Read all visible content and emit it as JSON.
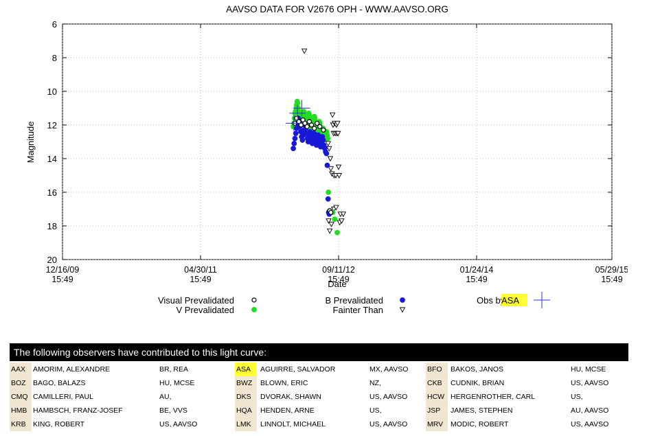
{
  "chart_data": {
    "type": "scatter",
    "title": "AAVSO DATA FOR V2676 OPH - WWW.AAVSO.ORG",
    "xlabel": "Date",
    "ylabel": "Magnitude",
    "ylim": [
      6,
      20
    ],
    "y_inverted": true,
    "y_ticks": [
      "6",
      "8",
      "10",
      "12",
      "14",
      "16",
      "18",
      "20"
    ],
    "x_ticks": [
      {
        "date": "12/16/09",
        "time": "15:49"
      },
      {
        "date": "04/30/11",
        "time": "15:49"
      },
      {
        "date": "09/11/12",
        "time": "15:49"
      },
      {
        "date": "01/24/14",
        "time": "15:49"
      },
      {
        "date": "05/29/15",
        "time": "15:49"
      }
    ],
    "grid": true,
    "legend": [
      {
        "label": "Visual Prevalidated",
        "marker": "black-circle"
      },
      {
        "label": "V Prevalidated",
        "marker": "green-circle"
      },
      {
        "label": "B Prevalidated",
        "marker": "blue-circle"
      },
      {
        "label": "Fainter Than",
        "marker": "open-triangle"
      },
      {
        "label": "Obs by",
        "highlight": "ASA",
        "marker": "blue-cross"
      }
    ],
    "series": [
      {
        "name": "V Prevalidated",
        "color": "#22dd22",
        "x": [
          "03/31/12",
          "04/02/12",
          "04/04/12",
          "04/06/12",
          "04/08/12",
          "04/10/12",
          "04/12/12",
          "04/14/12",
          "04/16/12",
          "04/18/12",
          "04/20/12",
          "04/22/12",
          "04/24/12",
          "04/26/12",
          "04/28/12",
          "04/30/12",
          "05/02/12",
          "05/04/12",
          "05/06/12",
          "05/08/12",
          "05/10/12",
          "05/12/12",
          "05/14/12",
          "05/16/12",
          "05/18/12",
          "05/20/12",
          "05/22/12",
          "05/24/12",
          "05/26/12",
          "05/28/12",
          "05/30/12",
          "06/01/12",
          "06/03/12",
          "06/05/12",
          "06/07/12",
          "06/09/12",
          "06/11/12",
          "06/13/12",
          "06/15/12",
          "06/17/12",
          "06/19/12",
          "06/21/12",
          "06/23/12",
          "06/25/12",
          "06/27/12",
          "06/29/12",
          "07/01/12",
          "07/03/12",
          "07/05/12",
          "07/07/12",
          "07/09/12",
          "07/11/12",
          "07/13/12",
          "07/15/12",
          "07/17/12",
          "07/19/12",
          "07/21/12",
          "07/23/12",
          "07/25/12",
          "07/27/12",
          "07/29/12",
          "08/01/12",
          "08/03/12",
          "08/05/12",
          "08/09/12",
          "08/21/12",
          "08/28/12",
          "09/06/12"
        ],
        "y": [
          12.1,
          11.9,
          11.6,
          11.3,
          11.2,
          11.0,
          10.8,
          10.6,
          10.7,
          11.0,
          11.2,
          11.5,
          11.7,
          11.9,
          12.0,
          11.8,
          11.6,
          11.4,
          11.3,
          11.2,
          11.4,
          11.6,
          11.8,
          12.0,
          12.1,
          11.9,
          11.7,
          11.5,
          11.3,
          11.4,
          11.6,
          11.8,
          12.0,
          12.2,
          12.3,
          12.1,
          11.9,
          11.7,
          11.5,
          11.6,
          11.8,
          12.0,
          12.2,
          12.3,
          12.4,
          12.2,
          12.0,
          11.8,
          11.9,
          12.1,
          12.3,
          12.5,
          12.6,
          12.4,
          12.2,
          12.3,
          12.5,
          12.7,
          12.8,
          12.6,
          12.4,
          12.6,
          12.8,
          16.0,
          17.1,
          17.2,
          17.6,
          18.4
        ]
      },
      {
        "name": "B Prevalidated",
        "color": "#1818d8",
        "x": [
          "03/31/12",
          "04/03/12",
          "04/06/12",
          "04/09/12",
          "04/12/12",
          "04/15/12",
          "04/18/12",
          "04/21/12",
          "04/24/12",
          "04/27/12",
          "04/30/12",
          "05/03/12",
          "05/06/12",
          "05/09/12",
          "05/12/12",
          "05/15/12",
          "05/18/12",
          "05/21/12",
          "05/24/12",
          "05/27/12",
          "05/30/12",
          "06/02/12",
          "06/05/12",
          "06/08/12",
          "06/11/12",
          "06/14/12",
          "06/17/12",
          "06/20/12",
          "06/23/12",
          "06/26/12",
          "06/29/12",
          "07/02/12",
          "07/05/12",
          "07/08/12",
          "07/11/12",
          "07/14/12",
          "07/17/12",
          "07/20/12",
          "07/23/12",
          "07/26/12",
          "07/29/12",
          "08/01/12",
          "08/04/12",
          "08/06/12",
          "08/08/12"
        ],
        "y": [
          13.4,
          13.1,
          12.8,
          12.5,
          12.2,
          11.9,
          11.6,
          11.8,
          12.1,
          12.4,
          12.7,
          12.9,
          12.6,
          12.3,
          12.0,
          12.2,
          12.5,
          12.8,
          13.0,
          12.7,
          12.4,
          12.6,
          12.9,
          13.1,
          12.8,
          12.5,
          12.7,
          13.0,
          13.2,
          12.9,
          12.6,
          12.8,
          13.1,
          13.3,
          13.0,
          12.7,
          12.9,
          13.2,
          13.4,
          13.6,
          13.7,
          14.4,
          16.4,
          17.2,
          17.3
        ]
      },
      {
        "name": "Visual Prevalidated",
        "color": "#000000",
        "x": [
          "04/05/12",
          "04/12/12",
          "04/20/12",
          "04/28/12",
          "05/05/12",
          "05/12/12",
          "05/20/12",
          "05/28/12",
          "06/05/12",
          "06/15/12",
          "06/25/12",
          "07/05/12",
          "07/18/12",
          "08/10/12",
          "08/14/12"
        ],
        "y": [
          11.9,
          11.6,
          11.8,
          12.0,
          11.7,
          11.9,
          12.1,
          11.8,
          12.0,
          12.2,
          11.9,
          12.1,
          12.3,
          17.1,
          17.2
        ]
      },
      {
        "name": "Fainter Than",
        "color": "#000000",
        "x": [
          "05/10/12",
          "07/20/12",
          "07/28/12",
          "08/04/12",
          "08/08/12",
          "08/12/12",
          "08/14/12",
          "08/18/12",
          "08/20/12",
          "08/22/12",
          "08/24/12",
          "08/26/12",
          "08/28/12",
          "08/30/12",
          "09/01/12",
          "09/03/12",
          "09/05/12",
          "09/07/12",
          "09/09/12",
          "09/11/12",
          "09/13/12",
          "09/15/12",
          "09/18/12",
          "09/22/12",
          "09/28/12",
          "08/06/12",
          "08/10/12",
          "08/16/12",
          "08/25/12",
          "09/02/12"
        ],
        "y": [
          7.6,
          12.5,
          12.8,
          13.1,
          13.4,
          14.0,
          14.6,
          14.9,
          11.4,
          12.0,
          12.5,
          15.0,
          11.9,
          12.5,
          15.0,
          12.0,
          12.5,
          11.9,
          12.5,
          14.5,
          15.0,
          17.8,
          17.3,
          17.7,
          17.3,
          17.7,
          18.3,
          17.9,
          17.0,
          16.9
        ]
      },
      {
        "name": "ASA",
        "color": "#2a36d6",
        "x": [
          "04/02/12",
          "04/15/12",
          "05/01/12"
        ],
        "y": [
          11.9,
          11.3,
          11.0
        ]
      }
    ]
  },
  "observers": {
    "banner": "The following observers have contributed to this light curve:",
    "rows": [
      [
        [
          "AAX",
          "AMORIM, ALEXANDRE",
          "BR, REA"
        ],
        [
          "ASA",
          "AGUIRRE, SALVADOR",
          "MX, AAVSO"
        ],
        [
          "BFO",
          "BAKOS, JANOS",
          "HU, MCSE"
        ]
      ],
      [
        [
          "BOZ",
          "BAGO, BALAZS",
          "HU, MCSE"
        ],
        [
          "BWZ",
          "BLOWN, ERIC",
          "NZ,"
        ],
        [
          "CKB",
          "CUDNIK, BRIAN",
          "US, AAVSO"
        ]
      ],
      [
        [
          "CMQ",
          "CAMILLERI, PAUL",
          "AU,"
        ],
        [
          "DKS",
          "DVORAK, SHAWN",
          "US, AAVSO"
        ],
        [
          "HCW",
          "HERGENROTHER, CARL",
          "US,"
        ]
      ],
      [
        [
          "HMB",
          "HAMBSCH, FRANZ-JOSEF",
          "BE, VVS"
        ],
        [
          "HQA",
          "HENDEN, ARNE",
          "US,"
        ],
        [
          "JSP",
          "JAMES, STEPHEN",
          "AU, AAVSO"
        ]
      ],
      [
        [
          "KRB",
          "KING, ROBERT",
          "US, AAVSO"
        ],
        [
          "LMK",
          "LINNOLT, MICHAEL",
          "US, AAVSO"
        ],
        [
          "MRV",
          "MODIC, ROBERT",
          "US, AAVSO"
        ]
      ]
    ],
    "highlight_code": "ASA"
  }
}
